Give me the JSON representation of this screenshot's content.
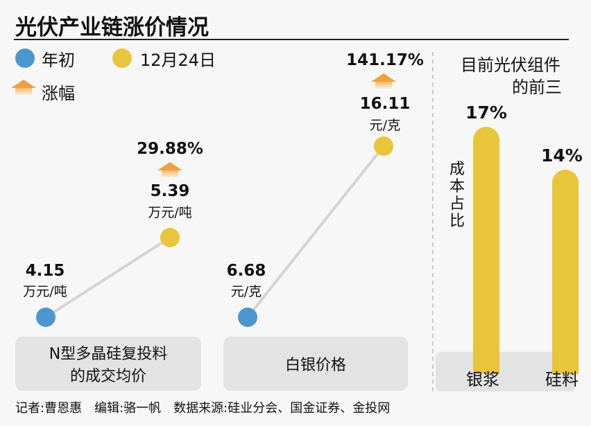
{
  "title": "光伏产业链涨价情况",
  "legend": {
    "start": "年初",
    "end": "12月24日",
    "rise": "涨幅",
    "colors": {
      "start": "#4d97d0",
      "end": "#e8c53a",
      "rise": "#f0a040"
    }
  },
  "chart_data": [
    {
      "type": "line",
      "category": "N型多晶硅复投料的成交均价",
      "category_lines": [
        "N型多晶硅复投料",
        "的成交均价"
      ],
      "start": {
        "value": "4.15",
        "unit": "万元/吨"
      },
      "end": {
        "value": "5.39",
        "unit": "万元/吨"
      },
      "rise": "29.88%"
    },
    {
      "type": "line",
      "category": "白银价格",
      "start": {
        "value": "6.68",
        "unit": "元/克"
      },
      "end": {
        "value": "16.11",
        "unit": "元/克"
      },
      "rise": "141.17%"
    },
    {
      "type": "bar",
      "title_lines": [
        "目前光伏组件",
        "的前三"
      ],
      "ylabel": "成本占比",
      "categories": [
        "银浆",
        "硅料"
      ],
      "values": [
        17,
        14
      ],
      "labels": [
        "17%",
        "14%"
      ]
    }
  ],
  "footer": "记者:曹恩惠　编辑:骆一帆　数据来源:硅业分会、国金证券、金投网"
}
